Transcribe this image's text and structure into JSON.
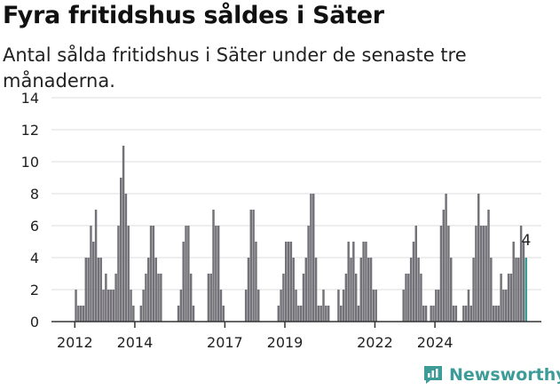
{
  "header": {
    "title": "Fyra fritidshus såldes i Säter",
    "subtitle": "Antal sålda fritidshus i Säter under de senaste tre månaderna."
  },
  "brand": {
    "name": "Newsworthy",
    "icon": "newsworthy-logo-icon"
  },
  "colors": {
    "bar": "#737278",
    "highlight": "#3d9b98",
    "grid": "#dddddd",
    "axis": "#333333"
  },
  "chart_data": {
    "type": "bar",
    "title": "Fyra fritidshus såldes i Säter",
    "xlabel": "",
    "ylabel": "",
    "ylim": [
      0,
      14
    ],
    "yticks": [
      "0",
      "2",
      "4",
      "6",
      "8",
      "10",
      "12",
      "14"
    ],
    "xticks": [
      "2012",
      "2014",
      "2017",
      "2019",
      "2022",
      "2024"
    ],
    "x_start": "2012-01",
    "x_frequency": "monthly",
    "values": [
      2,
      1,
      1,
      1,
      4,
      4,
      6,
      5,
      7,
      4,
      4,
      2,
      3,
      2,
      2,
      2,
      3,
      6,
      9,
      11,
      8,
      6,
      2,
      1,
      0,
      0,
      1,
      2,
      3,
      4,
      6,
      6,
      4,
      3,
      3,
      0,
      0,
      0,
      0,
      0,
      0,
      1,
      2,
      5,
      6,
      6,
      3,
      1,
      0,
      0,
      0,
      0,
      0,
      3,
      3,
      7,
      6,
      6,
      2,
      1,
      0,
      0,
      0,
      0,
      0,
      0,
      0,
      0,
      2,
      4,
      7,
      7,
      5,
      2,
      0,
      0,
      0,
      0,
      0,
      0,
      0,
      1,
      2,
      3,
      5,
      5,
      5,
      4,
      2,
      1,
      1,
      3,
      4,
      6,
      8,
      8,
      4,
      1,
      1,
      2,
      1,
      1,
      0,
      0,
      0,
      2,
      1,
      2,
      3,
      5,
      4,
      5,
      3,
      1,
      4,
      5,
      5,
      4,
      4,
      2,
      2,
      0,
      0,
      0,
      0,
      0,
      0,
      0,
      0,
      0,
      0,
      2,
      3,
      3,
      4,
      5,
      6,
      4,
      3,
      1,
      1,
      0,
      1,
      1,
      2,
      2,
      6,
      7,
      8,
      6,
      4,
      1,
      1,
      0,
      0,
      1,
      1,
      2,
      1,
      4,
      6,
      8,
      6,
      6,
      6,
      7,
      4,
      1,
      1,
      1,
      3,
      2,
      2,
      3,
      3,
      5,
      4,
      4,
      6,
      5,
      4
    ],
    "highlight_last": true,
    "annotation": "4"
  }
}
